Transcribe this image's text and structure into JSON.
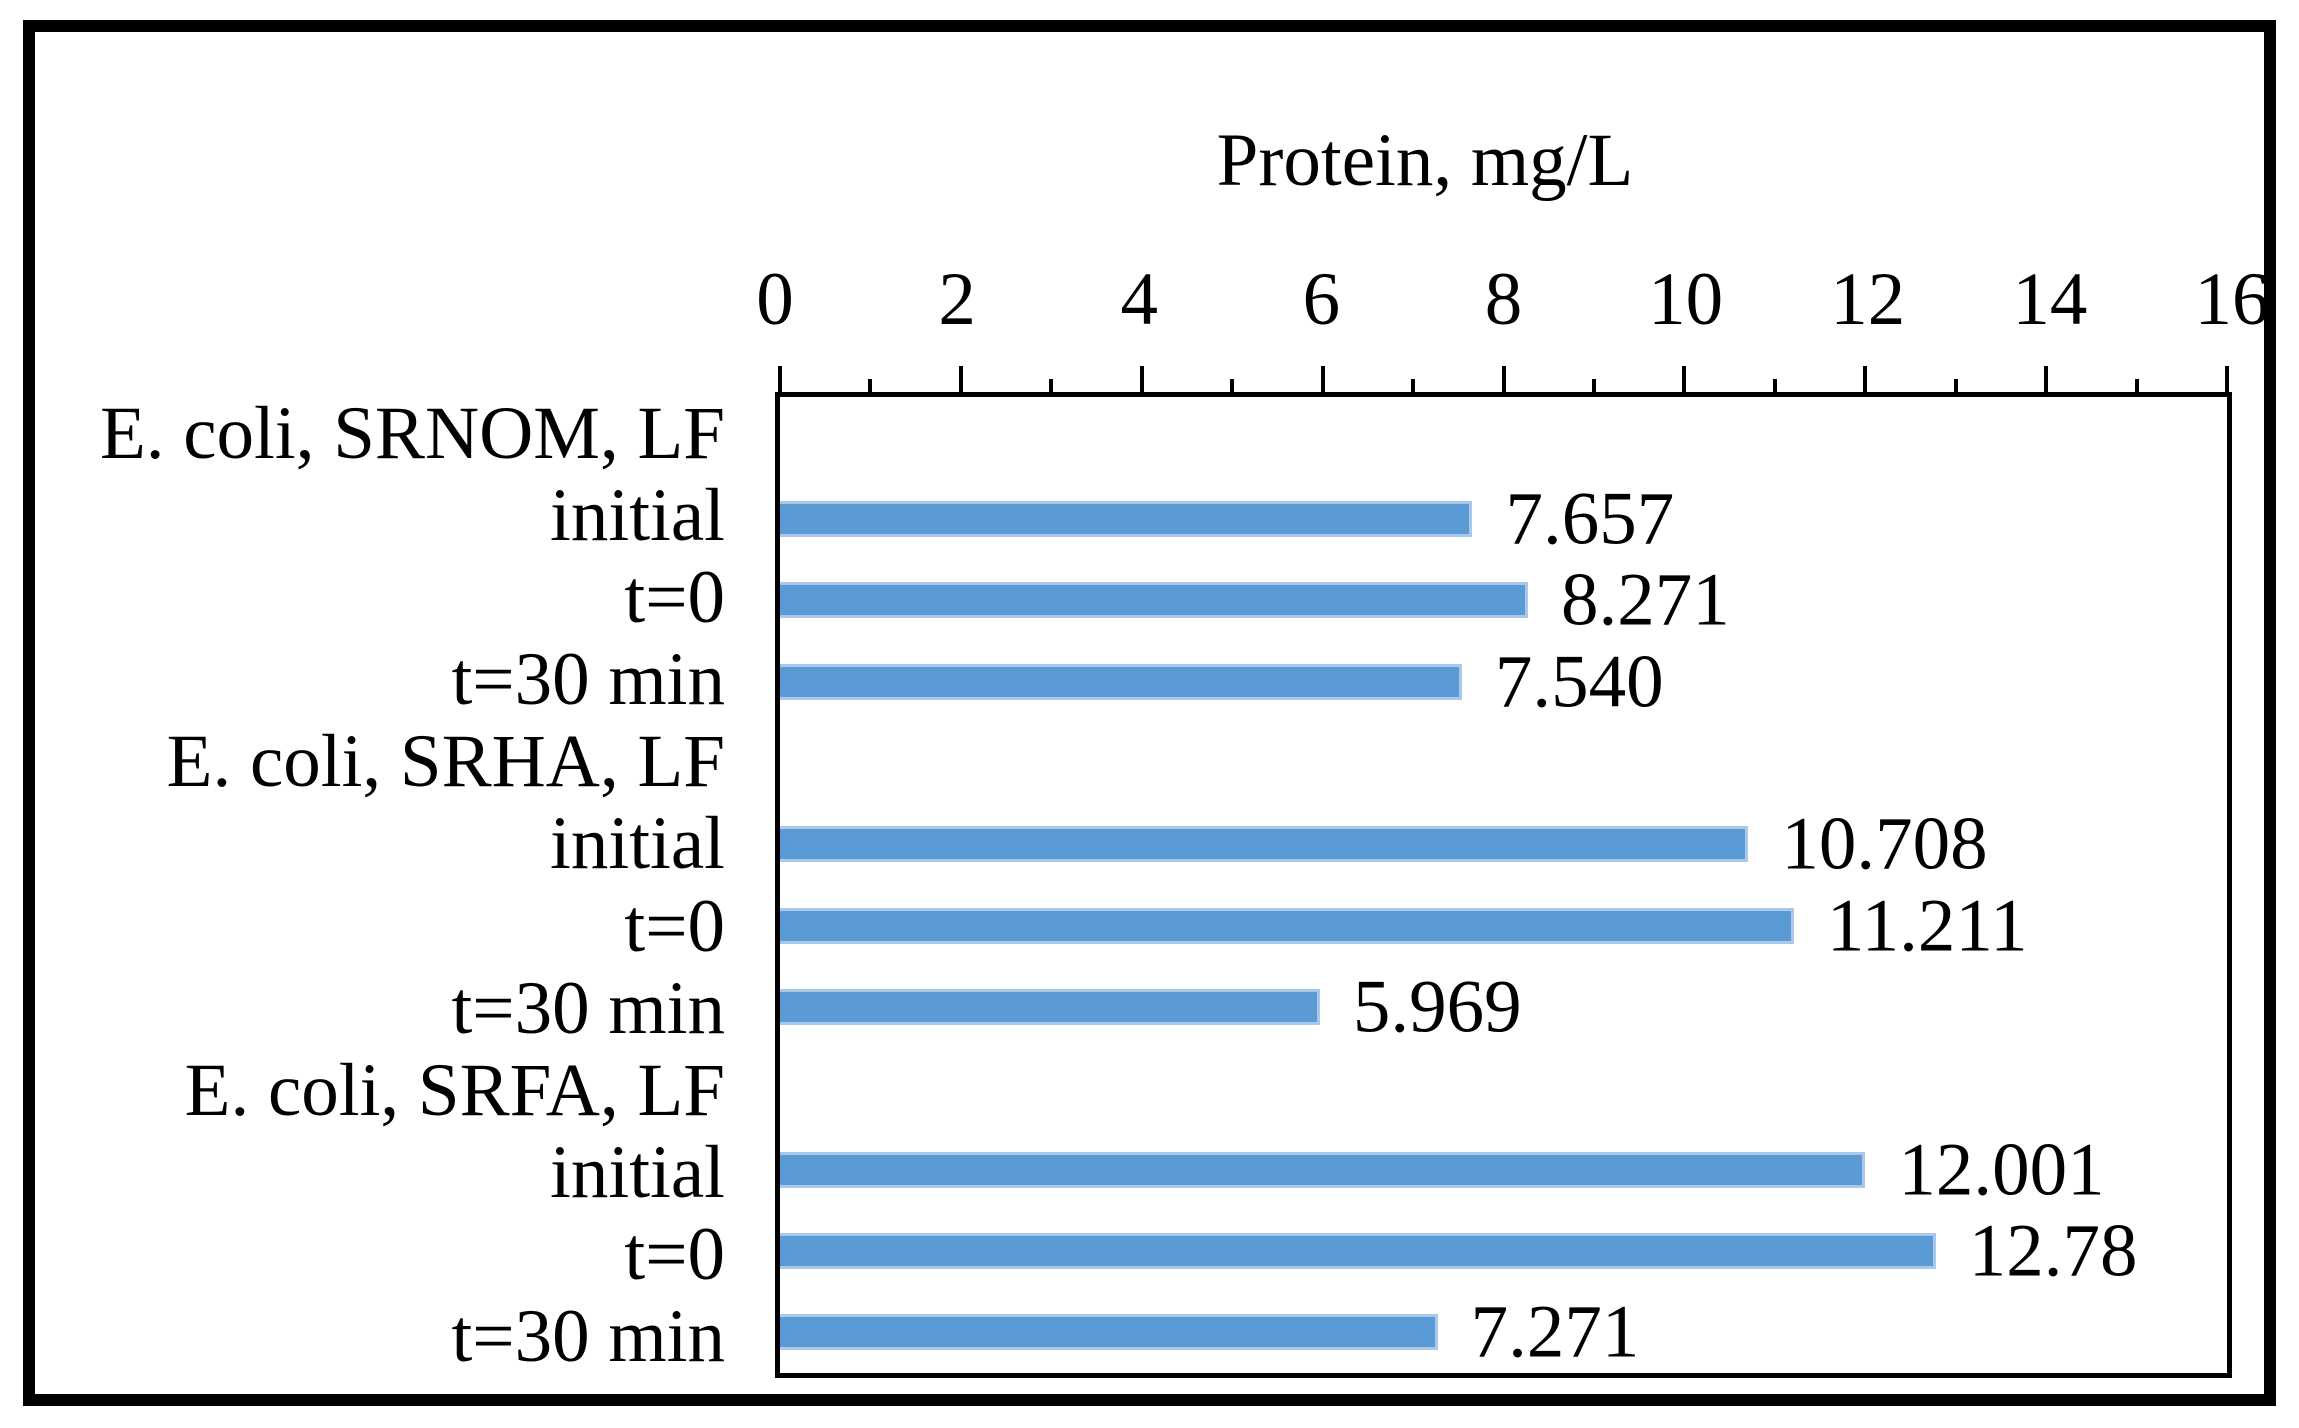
{
  "chart_data": {
    "type": "bar",
    "orientation": "horizontal",
    "title": "Protein, mg/L",
    "xlabel": "Protein, mg/L",
    "xlim": [
      0,
      16
    ],
    "x_major_ticks": [
      0,
      2,
      4,
      6,
      8,
      10,
      12,
      14,
      16
    ],
    "x_minor_tick_step": 1,
    "grid": false,
    "legend": false,
    "bar_color": "#5B9BD5",
    "bar_border_color": "#A9C8EA",
    "frame_color": "#000000",
    "rows": [
      {
        "label": "E. coli, SRNOM, LF",
        "value": null,
        "value_label": ""
      },
      {
        "label": "initial",
        "value": 7.657,
        "value_label": "7.657"
      },
      {
        "label": "t=0",
        "value": 8.271,
        "value_label": "8.271"
      },
      {
        "label": "t=30 min",
        "value": 7.54,
        "value_label": "7.540"
      },
      {
        "label": "E. coli, SRHA, LF",
        "value": null,
        "value_label": ""
      },
      {
        "label": "initial",
        "value": 10.708,
        "value_label": "10.708"
      },
      {
        "label": "t=0",
        "value": 11.211,
        "value_label": "11.211"
      },
      {
        "label": "t=30 min",
        "value": 5.969,
        "value_label": "5.969"
      },
      {
        "label": "E. coli, SRFA, LF",
        "value": null,
        "value_label": ""
      },
      {
        "label": "initial",
        "value": 12.001,
        "value_label": "12.001"
      },
      {
        "label": "t=0",
        "value": 12.78,
        "value_label": "12.78"
      },
      {
        "label": "t=30 min",
        "value": 7.271,
        "value_label": "7.271"
      }
    ]
  }
}
